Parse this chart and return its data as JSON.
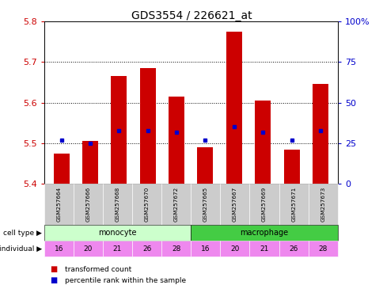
{
  "title": "GDS3554 / 226621_at",
  "samples": [
    "GSM257664",
    "GSM257666",
    "GSM257668",
    "GSM257670",
    "GSM257672",
    "GSM257665",
    "GSM257667",
    "GSM257669",
    "GSM257671",
    "GSM257673"
  ],
  "transformed_count": [
    5.475,
    5.505,
    5.665,
    5.685,
    5.615,
    5.49,
    5.775,
    5.605,
    5.485,
    5.645
  ],
  "percentile_rank": [
    27,
    25,
    33,
    33,
    32,
    27,
    35,
    32,
    27,
    33
  ],
  "bar_bottom": 5.4,
  "ylim": [
    5.4,
    5.8
  ],
  "yticks": [
    5.4,
    5.5,
    5.6,
    5.7,
    5.8
  ],
  "right_ytick_vals": [
    0,
    25,
    50,
    75,
    100
  ],
  "right_ytick_labels": [
    "0",
    "25",
    "50",
    "75",
    "100%"
  ],
  "bar_color": "#cc0000",
  "dot_color": "#0000cc",
  "cell_type_colors": {
    "monocyte": "#ccffcc",
    "macrophage": "#44cc44"
  },
  "individuals": [
    16,
    20,
    21,
    26,
    28,
    16,
    20,
    21,
    26,
    28
  ],
  "individual_color": "#ee88ee",
  "tick_label_color": "#cc0000",
  "right_tick_color": "#0000cc",
  "grid_dotted_at": [
    5.5,
    5.6,
    5.7
  ],
  "legend_red": "transformed count",
  "legend_blue": "percentile rank within the sample",
  "background_color": "#ffffff",
  "sample_box_color": "#cccccc",
  "title_fontsize": 10,
  "bar_width": 0.55
}
